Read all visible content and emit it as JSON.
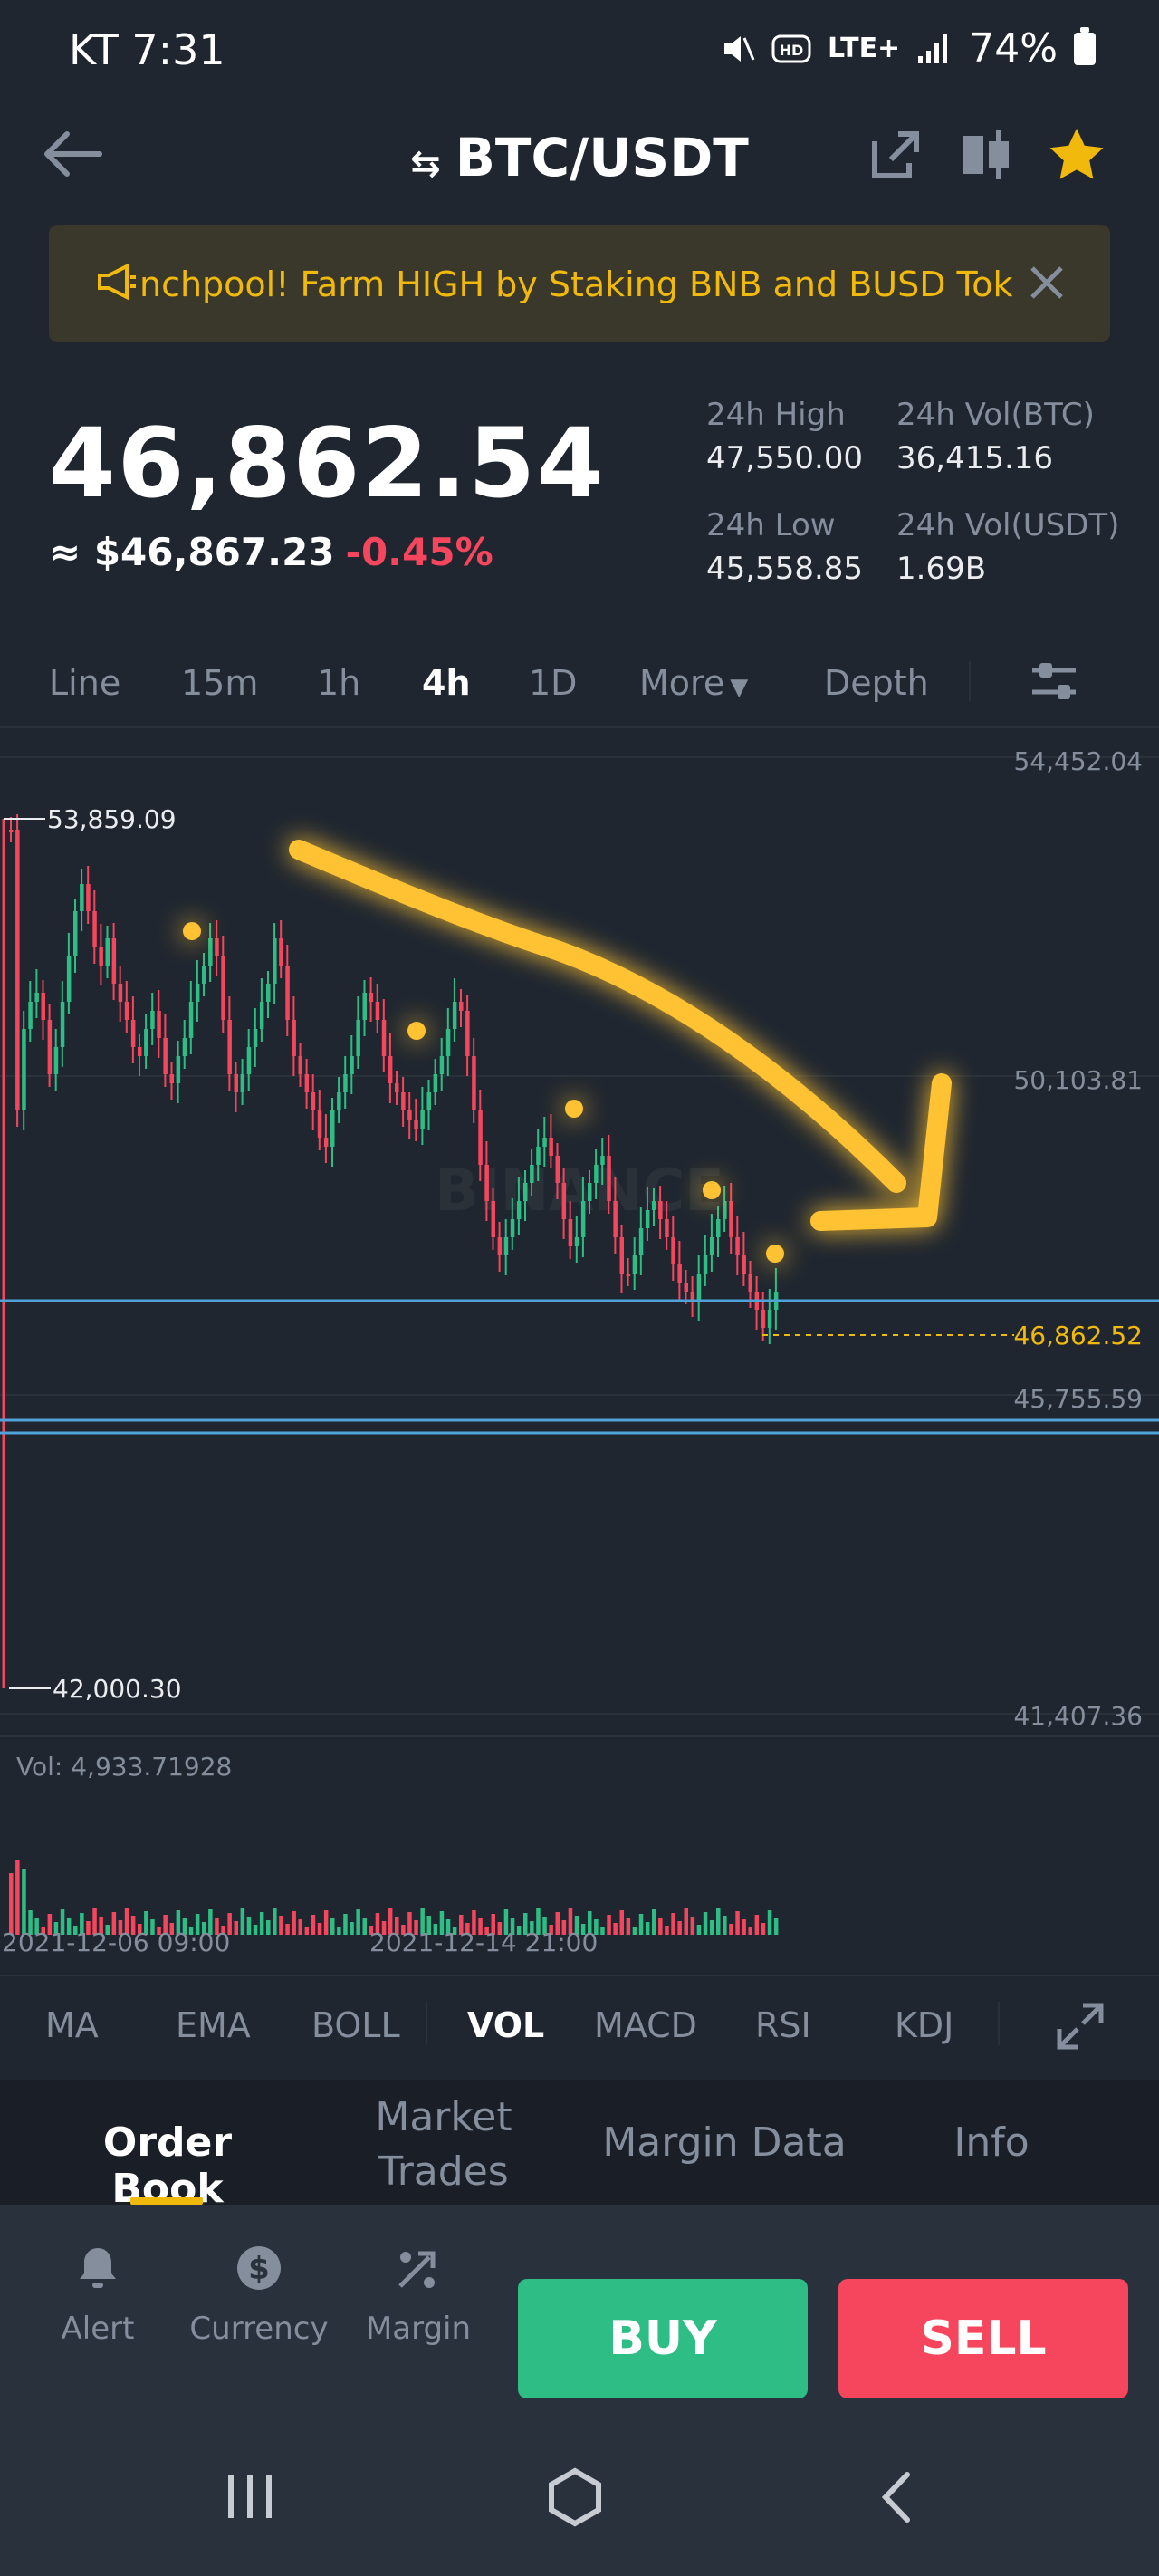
{
  "status_bar": {
    "time": "KT 7:31",
    "network": "LTE+",
    "battery": "74%"
  },
  "header": {
    "title": "BTC/USDT",
    "icons": [
      "back-arrow-icon",
      "swap-icon",
      "share-icon",
      "candlestick-icon",
      "star-icon"
    ]
  },
  "banner": {
    "text": "nchpool! Farm HIGH by Staking BNB and BUSD Tok"
  },
  "ticker": {
    "last_price": "46,862.54",
    "fiat_price": "≈ $46,867.23",
    "change": "-0.45%",
    "high_label": "24h High",
    "high_value": "47,550.00",
    "low_label": "24h Low",
    "low_value": "45,558.85",
    "vol_btc_label": "24h Vol(BTC)",
    "vol_btc_value": "36,415.16",
    "vol_usdt_label": "24h Vol(USDT)",
    "vol_usdt_value": "1.69B"
  },
  "timeframes": {
    "items": [
      "Line",
      "15m",
      "1h",
      "4h",
      "1D",
      "More",
      "Depth"
    ],
    "active": "4h"
  },
  "chart": {
    "axis_labels": [
      "54,452.04",
      "50,103.81",
      "45,755.59",
      "41,407.36"
    ],
    "current_price_label": "46,862.52",
    "max_marker": "53,859.09",
    "min_marker": "42,000.30",
    "watermark": "BINANCE",
    "volume_label": "Vol: 4,933.71928",
    "date_labels": [
      "2021-12-06 09:00",
      "2021-12-14 21:00"
    ]
  },
  "chart_data": {
    "type": "candlestick",
    "y_range": [
      41407.36,
      54452.04
    ],
    "last_price": 46862.52,
    "period_high": 53859.09,
    "period_low": 42000.3
  },
  "indicators": {
    "items": [
      "MA",
      "EMA",
      "BOLL",
      "VOL",
      "MACD",
      "RSI",
      "KDJ"
    ],
    "active": "VOL"
  },
  "order_tabs": {
    "order_book": "Order Book",
    "market_trades_1": "Market",
    "market_trades_2": "Trades",
    "margin_data": "Margin Data",
    "info": "Info"
  },
  "actions": {
    "alert": "Alert",
    "currency": "Currency",
    "margin": "Margin",
    "buy": "BUY",
    "sell": "SELL"
  }
}
